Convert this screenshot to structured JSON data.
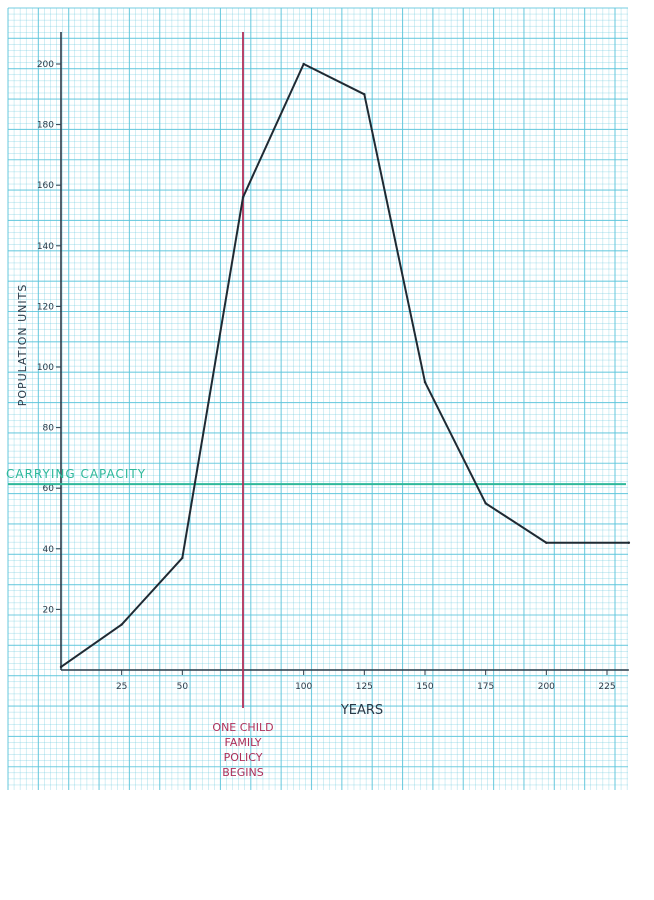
{
  "chart_data": {
    "type": "line",
    "title": "",
    "xlabel": "YEARS",
    "ylabel": "POPULATION UNITS",
    "x_ticks": [
      25,
      50,
      100,
      125,
      150,
      175,
      200,
      225
    ],
    "x_tick_labels": [
      "25",
      "50",
      "100",
      "125",
      "150",
      "175",
      "200",
      "225"
    ],
    "y_ticks": [
      20,
      40,
      60,
      80,
      100,
      120,
      140,
      160,
      180,
      200
    ],
    "y_tick_labels": [
      "20",
      "40",
      "60",
      "80",
      "100",
      "120",
      "140",
      "160",
      "180",
      "200"
    ],
    "xlim": [
      0,
      234
    ],
    "ylim": [
      0,
      205
    ],
    "grid": true,
    "series": [
      {
        "name": "",
        "color": "#1f2a33",
        "x": [
          0,
          25,
          50,
          75,
          100,
          125,
          150,
          175,
          200,
          234
        ],
        "y": [
          1,
          15,
          37,
          156,
          200,
          190,
          95,
          55,
          42,
          42
        ]
      }
    ],
    "annotations": {
      "carrying_capacity": {
        "y": 64,
        "label": "CARRYING CAPACITY",
        "color": "#2fb89a"
      },
      "policy_line": {
        "x": 75,
        "label_lines": [
          "ONE CHILD",
          "FAMILY",
          "POLICY",
          "BEGINS"
        ],
        "color": "#b0305a"
      }
    },
    "grid_color": "#5cc4da"
  }
}
